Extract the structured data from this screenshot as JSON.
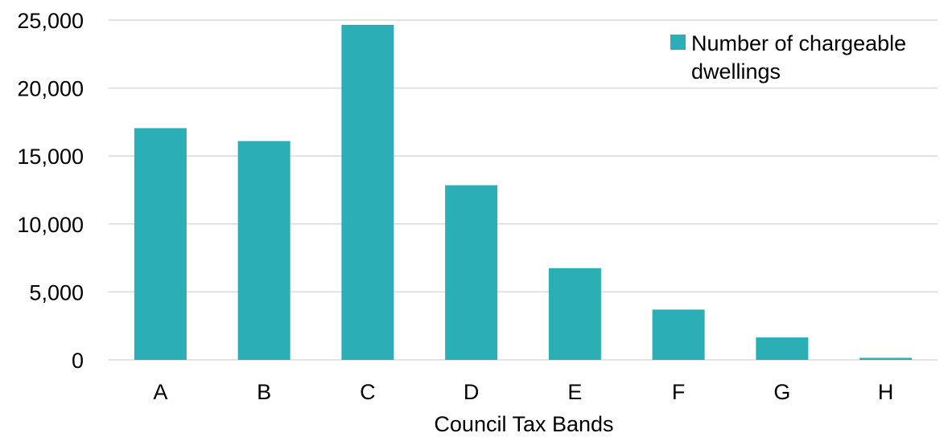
{
  "chart_data": {
    "type": "bar",
    "categories": [
      "A",
      "B",
      "C",
      "D",
      "E",
      "F",
      "G",
      "H"
    ],
    "series": [
      {
        "name": "Number of chargeable dwellings",
        "values": [
          17050,
          16100,
          24650,
          12850,
          6750,
          3700,
          1650,
          150
        ],
        "color": "#2BAEB6"
      }
    ],
    "xlabel": "Council Tax Bands",
    "ylabel": "",
    "ylim": [
      0,
      25000
    ],
    "yticks": [
      0,
      5000,
      10000,
      15000,
      20000,
      25000
    ],
    "ytick_labels": [
      "0",
      "5,000",
      "10,000",
      "15,000",
      "20,000",
      "25,000"
    ],
    "grid": true,
    "legend": {
      "position": "top-right",
      "lines": [
        "Number of chargeable",
        "dwellings"
      ]
    }
  }
}
